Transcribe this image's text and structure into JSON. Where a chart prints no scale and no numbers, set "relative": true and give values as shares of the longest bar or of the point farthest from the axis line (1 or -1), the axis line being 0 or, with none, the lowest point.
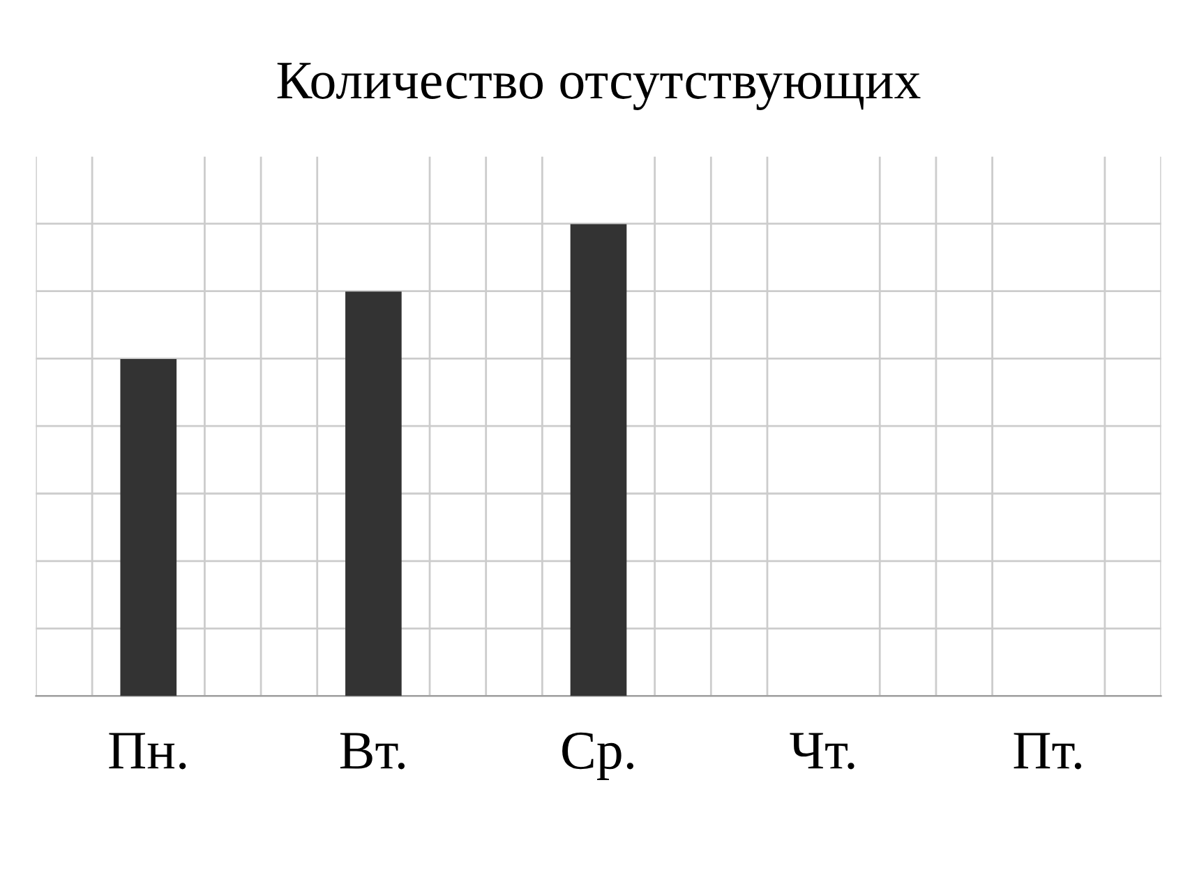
{
  "chart_data": {
    "type": "bar",
    "title": "Количество отсутствующих",
    "categories": [
      "Пн.",
      "Вт.",
      "Ср.",
      "Чт.",
      "Пт."
    ],
    "values": [
      0.714,
      0.857,
      1,
      0,
      0
    ],
    "color": "#333333",
    "relative": true,
    "grid": true
  }
}
